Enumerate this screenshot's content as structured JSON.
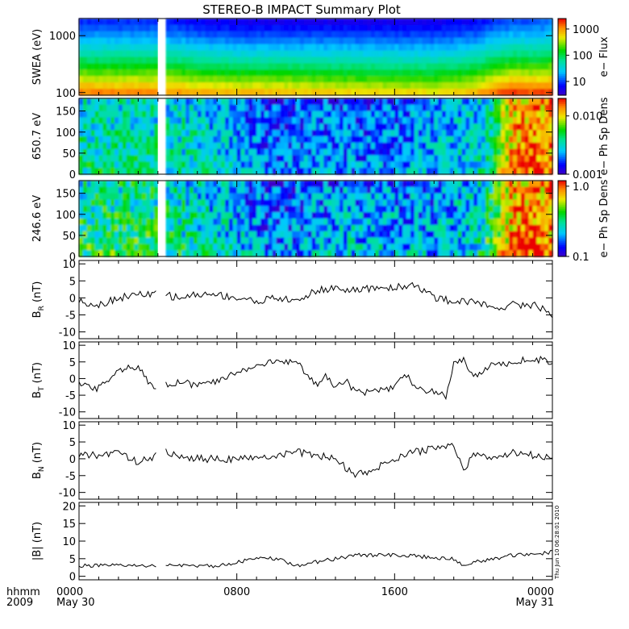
{
  "title": "STEREO-B IMPACT Summary Plot",
  "timestamp": "Thu Jun 10 06:28:01 2010",
  "x_axis": {
    "row1_prefix": "hhmm",
    "row2_prefix": "2009",
    "ticks": [
      "0000",
      "0800",
      "1600",
      "0000"
    ],
    "dates": [
      "May 30",
      "May 31"
    ],
    "range_hours": [
      0,
      24
    ]
  },
  "data_gap_hours": [
    4.0,
    4.35
  ],
  "colors": {
    "trace": "#000000",
    "axis": "#000000",
    "gap": "#ffffff"
  },
  "chart_data": [
    {
      "type": "heatmap",
      "id": "swea",
      "ylabel": "SWEA (eV)",
      "ylog": true,
      "ylim": [
        90,
        2000
      ],
      "yticks": [
        "1000",
        "100"
      ],
      "colorbar": {
        "label": "e− Flux",
        "scale": "log",
        "range": [
          3,
          2500
        ],
        "ticks": [
          "1000",
          "100",
          "10"
        ]
      },
      "description_of_data": "energy flux spectrum; high flux at low energy, enhanced at low energies after ~2000 hhmm",
      "time_hours": [
        0,
        2,
        4,
        6,
        8,
        10,
        12,
        14,
        16,
        18,
        20,
        21,
        22,
        23,
        24
      ],
      "low_energy_flux": [
        1500,
        1400,
        1400,
        1000,
        900,
        900,
        800,
        700,
        700,
        600,
        900,
        1500,
        2400,
        2000,
        2400
      ],
      "high_energy_flux": [
        8,
        8,
        8,
        6,
        5,
        5,
        5,
        5,
        5,
        5,
        6,
        8,
        10,
        10,
        12
      ]
    },
    {
      "type": "heatmap",
      "id": "pad650",
      "ylabel": "650.7 eV",
      "ylim": [
        0,
        180
      ],
      "yticks": [
        "150",
        "100",
        "50",
        "0"
      ],
      "colorbar": {
        "label": "e− Ph Sp Dens",
        "scale": "log",
        "range": [
          0.001,
          0.02
        ],
        "ticks": [
          "0.010",
          "0.001"
        ]
      },
      "description_of_data": "pitch-angle distribution at 650.7 eV",
      "time_hours": [
        0,
        2,
        4,
        6,
        8,
        10,
        12,
        14,
        16,
        18,
        20,
        21,
        22,
        23,
        24
      ],
      "level": [
        0.0035,
        0.0035,
        0.0033,
        0.003,
        0.0022,
        0.0016,
        0.002,
        0.0018,
        0.002,
        0.0022,
        0.0028,
        0.0035,
        0.012,
        0.015,
        0.013
      ]
    },
    {
      "type": "heatmap",
      "id": "pad246",
      "ylabel": "246.6 eV",
      "ylim": [
        0,
        180
      ],
      "yticks": [
        "150",
        "100",
        "50",
        "0"
      ],
      "colorbar": {
        "label": "e− Ph Sp Dens",
        "scale": "log",
        "range": [
          0.1,
          1.2
        ],
        "ticks": [
          "1.0",
          "0.1"
        ]
      },
      "description_of_data": "pitch-angle distribution at 246.6 eV",
      "time_hours": [
        0,
        2,
        4,
        6,
        8,
        10,
        12,
        14,
        16,
        18,
        20,
        21,
        22,
        23,
        24
      ],
      "level": [
        0.32,
        0.33,
        0.32,
        0.26,
        0.2,
        0.15,
        0.19,
        0.2,
        0.2,
        0.18,
        0.24,
        0.35,
        0.85,
        1.0,
        0.85
      ]
    },
    {
      "type": "line",
      "id": "br",
      "ylabel": "B",
      "ylabel_sub": "R",
      "ylabel_unit": " (nT)",
      "ylim": [
        -12,
        11
      ],
      "yticks": [
        10,
        5,
        0,
        -5,
        -10
      ],
      "x_hours": [
        0,
        1,
        2,
        3,
        4,
        4.4,
        5,
        6,
        7,
        8,
        9,
        10,
        11,
        12,
        13,
        14,
        15,
        16,
        17,
        18,
        19,
        20,
        21,
        22,
        23,
        23.5,
        24
      ],
      "values": [
        -1,
        -2,
        0,
        1,
        1,
        1,
        0,
        1,
        1,
        0,
        -1,
        0,
        -1,
        2,
        3,
        2,
        3,
        3,
        4,
        0,
        -1,
        -1,
        -3,
        -2,
        -2,
        -3,
        -5
      ]
    },
    {
      "type": "line",
      "id": "bt",
      "ylabel": "B",
      "ylabel_sub": "T",
      "ylabel_unit": " (nT)",
      "ylim": [
        -12,
        11
      ],
      "yticks": [
        10,
        5,
        0,
        -5,
        -10
      ],
      "x_hours": [
        0,
        1,
        2,
        3,
        3.7,
        4.4,
        5,
        6,
        7,
        8,
        9,
        10,
        11,
        11.5,
        12,
        12.5,
        13,
        13.5,
        14,
        15,
        16,
        16.5,
        17,
        18,
        18.6,
        19,
        19.5,
        20,
        21,
        22,
        23,
        24
      ],
      "values": [
        -2,
        -3,
        3,
        3,
        -2,
        -2,
        -1,
        -2,
        -1,
        2,
        4,
        5,
        5,
        2,
        -2,
        1,
        -3,
        0,
        -4,
        -4,
        -3,
        2,
        -3,
        -4,
        -5,
        4,
        6,
        1,
        4,
        5,
        6,
        5
      ]
    },
    {
      "type": "line",
      "id": "bn",
      "ylabel": "B",
      "ylabel_sub": "N",
      "ylabel_unit": " (nT)",
      "ylim": [
        -12,
        11
      ],
      "yticks": [
        10,
        5,
        0,
        -5,
        -10
      ],
      "x_hours": [
        0,
        1,
        2,
        3,
        4,
        4.4,
        5,
        6,
        7,
        8,
        9,
        10,
        11,
        12,
        13,
        14,
        15,
        16,
        17,
        18,
        19,
        19.5,
        20,
        21,
        22,
        23,
        24
      ],
      "values": [
        1,
        1,
        2,
        -1,
        1,
        2,
        1,
        0,
        0,
        0,
        0,
        1,
        2,
        1,
        0,
        -5,
        -3,
        0,
        2,
        3,
        4,
        -3,
        1,
        0,
        2,
        1,
        0
      ]
    },
    {
      "type": "line",
      "id": "bmag",
      "ylabel": "|B| (nT)",
      "ylim": [
        -1,
        21
      ],
      "yticks": [
        20,
        15,
        10,
        5,
        0
      ],
      "x_hours": [
        0,
        1,
        2,
        3,
        4,
        4.4,
        5,
        6,
        7,
        8,
        9,
        10,
        11,
        12,
        13,
        14,
        15,
        16,
        17,
        18,
        19,
        19.5,
        20,
        21,
        22,
        23,
        24
      ],
      "values": [
        3,
        3,
        3,
        3,
        3,
        3,
        3,
        3,
        3,
        4,
        5,
        5,
        3,
        4,
        5,
        6,
        6,
        6,
        6,
        5,
        5,
        3,
        4,
        5,
        6,
        6,
        7
      ]
    }
  ]
}
